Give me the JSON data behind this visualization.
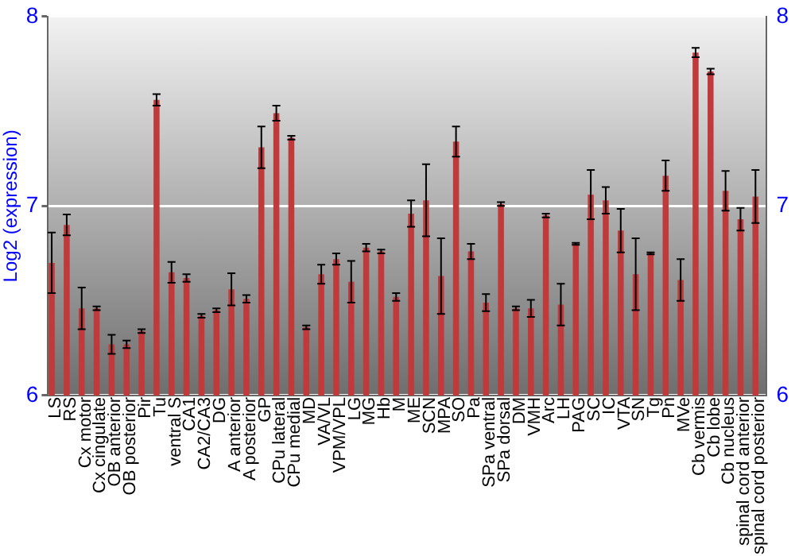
{
  "chart_data": {
    "type": "bar",
    "ylabel": "Log2 (expression)",
    "categories": [
      "LS",
      "RS",
      "Cx motor",
      "Cx cingulate",
      "OB anterior",
      "OB posterior",
      "Pir",
      "Tu",
      "ventral S",
      "CA1",
      "CA2/CA3",
      "DG",
      "A anterior",
      "A posterior",
      "GP",
      "CPu lateral",
      "CPu medial",
      "MD",
      "VA/VL",
      "VPM/VPL",
      "LG",
      "MG",
      "Hb",
      "M",
      "ME",
      "SCN",
      "MPA",
      "SO",
      "Pa",
      "SPa ventral",
      "SPa dorsal",
      "DM",
      "VMH",
      "Arc",
      "LH",
      "PAG",
      "SC",
      "IC",
      "VTA",
      "SN",
      "Tg",
      "Pn",
      "MVe",
      "Cb vermis",
      "Cb lobe",
      "Cb nucleus",
      "spinal cord anterior",
      "spinal cord posterior"
    ],
    "values": [
      6.7,
      6.9,
      6.46,
      6.46,
      6.27,
      6.27,
      6.34,
      7.56,
      6.65,
      6.62,
      6.42,
      6.45,
      6.56,
      6.51,
      7.31,
      7.49,
      7.36,
      6.36,
      6.64,
      6.72,
      6.6,
      6.78,
      6.76,
      6.52,
      6.96,
      7.03,
      6.63,
      7.34,
      6.76,
      6.49,
      7.01,
      6.46,
      6.46,
      6.95,
      6.48,
      6.8,
      7.06,
      7.03,
      6.87,
      6.64,
      6.75,
      7.16,
      6.61,
      7.81,
      7.71,
      7.08,
      6.93,
      7.05
    ],
    "errors": [
      0.16,
      0.055,
      0.11,
      0.01,
      0.05,
      0.02,
      0.01,
      0.03,
      0.055,
      0.02,
      0.01,
      0.01,
      0.085,
      0.02,
      0.11,
      0.04,
      0.01,
      0.01,
      0.05,
      0.03,
      0.11,
      0.02,
      0.01,
      0.02,
      0.07,
      0.19,
      0.2,
      0.08,
      0.04,
      0.045,
      0.01,
      0.01,
      0.045,
      0.01,
      0.11,
      0.005,
      0.13,
      0.07,
      0.115,
      0.19,
      0.005,
      0.08,
      0.11,
      0.025,
      0.015,
      0.105,
      0.06,
      0.14
    ],
    "color": "#c0393b",
    "ylim": [
      6,
      8
    ],
    "yticks": [
      6,
      7,
      8
    ],
    "y2lim": [
      6,
      8
    ],
    "y2ticks": [
      6,
      7,
      8
    ],
    "grid": "y",
    "legend": false
  }
}
